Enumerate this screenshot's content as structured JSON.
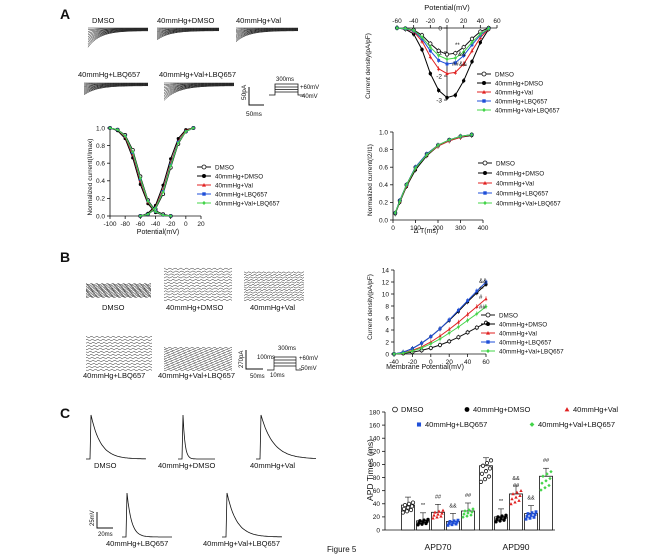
{
  "panels": {
    "A": "A",
    "B": "B",
    "C": "C"
  },
  "caption": "Figure 5",
  "groups": [
    "DMSO",
    "40mmHg+DMSO",
    "40mmHg+Val",
    "40mmHg+LBQ657",
    "40mmHg+Val+LBQ657"
  ],
  "colors": {
    "DMSO": "#ffffff",
    "40mmHg+DMSO": "#000000",
    "40mmHg+Val": "#e02020",
    "40mmHg+LBQ657": "#1f4fd8",
    "40mmHg+Val+LBQ657": "#44d44a"
  },
  "panelA": {
    "traces": {
      "labels": [
        "DMSO",
        "40mmHg+DMSO",
        "40mmHg+Val",
        "40mmHg+LBQ657",
        "40mmHg+Val+LBQ657"
      ],
      "scale_y": "50pA",
      "scale_x": "50ms",
      "protocol": {
        "dur": "300ms",
        "v_high": "+60mV",
        "v_low": "-40mV"
      }
    },
    "iv_chart": {
      "type": "line",
      "title": "Potential(mV)",
      "ylabel": "Current density(pA/pF)",
      "xlim": [
        -60,
        60
      ],
      "ylim": [
        -3,
        0
      ],
      "xticks": [
        "-60",
        "-40",
        "-20",
        "0",
        "20",
        "40",
        "60"
      ],
      "yticks": [
        "0",
        "-1",
        "-2",
        "-3"
      ],
      "x": [
        -60,
        -50,
        -40,
        -30,
        -20,
        -10,
        0,
        10,
        20,
        30,
        40,
        50
      ],
      "series": [
        {
          "name": "DMSO",
          "values": [
            0,
            -0.02,
            -0.08,
            -0.3,
            -0.65,
            -0.95,
            -1.1,
            -1.05,
            -0.8,
            -0.45,
            -0.15,
            0
          ]
        },
        {
          "name": "40mmHg+DMSO",
          "values": [
            0,
            -0.05,
            -0.25,
            -0.9,
            -1.9,
            -2.6,
            -2.9,
            -2.8,
            -2.2,
            -1.4,
            -0.6,
            -0.05
          ]
        },
        {
          "name": "40mmHg+Val",
          "values": [
            0,
            -0.03,
            -0.15,
            -0.55,
            -1.2,
            -1.7,
            -1.9,
            -1.85,
            -1.5,
            -0.95,
            -0.4,
            -0.03
          ]
        },
        {
          "name": "40mmHg+LBQ657",
          "values": [
            0,
            -0.03,
            -0.12,
            -0.45,
            -0.95,
            -1.35,
            -1.5,
            -1.45,
            -1.15,
            -0.7,
            -0.3,
            -0.02
          ]
        },
        {
          "name": "40mmHg+Val+LBQ657",
          "values": [
            0,
            -0.02,
            -0.1,
            -0.38,
            -0.8,
            -1.15,
            -1.3,
            -1.25,
            -1.0,
            -0.6,
            -0.25,
            -0.02
          ]
        }
      ],
      "annotations": [
        "**",
        "&&",
        "##",
        "&&"
      ]
    },
    "ss_chart": {
      "type": "line",
      "xlabel": "Potential(mV)",
      "ylabel": "Normalized current(I/Imax)",
      "xlim": [
        -100,
        20
      ],
      "ylim": [
        0,
        1.0
      ],
      "xticks": [
        "-100",
        "-80",
        "-60",
        "-40",
        "-20",
        "0",
        "20"
      ],
      "yticks": [
        "0.0",
        "0.2",
        "0.4",
        "0.6",
        "0.8",
        "1.0"
      ],
      "act_x": [
        -60,
        -50,
        -40,
        -30,
        -20,
        -10,
        0,
        10
      ],
      "inact_x": [
        -100,
        -90,
        -80,
        -70,
        -60,
        -50,
        -40,
        -30,
        -20
      ],
      "series": [
        {
          "name": "DMSO",
          "act": [
            0.0,
            0.02,
            0.08,
            0.25,
            0.55,
            0.82,
            0.96,
            1.0
          ],
          "inact": [
            1.0,
            0.98,
            0.92,
            0.75,
            0.45,
            0.18,
            0.06,
            0.02,
            0.0
          ]
        },
        {
          "name": "40mmHg+DMSO",
          "act": [
            0.0,
            0.03,
            0.12,
            0.35,
            0.65,
            0.88,
            0.98,
            1.0
          ],
          "inact": [
            1.0,
            0.97,
            0.88,
            0.66,
            0.36,
            0.14,
            0.04,
            0.01,
            0.0
          ]
        },
        {
          "name": "40mmHg+Val",
          "act": [
            0.0,
            0.02,
            0.1,
            0.3,
            0.6,
            0.85,
            0.97,
            1.0
          ],
          "inact": [
            1.0,
            0.98,
            0.9,
            0.7,
            0.4,
            0.16,
            0.05,
            0.01,
            0.0
          ]
        },
        {
          "name": "40mmHg+LBQ657",
          "act": [
            0.0,
            0.02,
            0.09,
            0.28,
            0.58,
            0.84,
            0.96,
            1.0
          ],
          "inact": [
            1.0,
            0.98,
            0.91,
            0.72,
            0.42,
            0.17,
            0.05,
            0.01,
            0.0
          ]
        },
        {
          "name": "40mmHg+Val+LBQ657",
          "act": [
            0.0,
            0.02,
            0.09,
            0.27,
            0.57,
            0.83,
            0.96,
            1.0
          ],
          "inact": [
            1.0,
            0.98,
            0.91,
            0.73,
            0.43,
            0.17,
            0.05,
            0.01,
            0.0
          ]
        }
      ]
    },
    "recovery_chart": {
      "type": "line",
      "xlabel": "Δ T(ms)",
      "ylabel": "Normalized current(I2/I1)",
      "xlim": [
        0,
        400
      ],
      "ylim": [
        0,
        1.0
      ],
      "xticks": [
        "0",
        "100",
        "200",
        "300",
        "400"
      ],
      "yticks": [
        "0.0",
        "0.2",
        "0.4",
        "0.6",
        "0.8",
        "1.0"
      ],
      "x": [
        10,
        30,
        60,
        100,
        150,
        200,
        250,
        300,
        350
      ],
      "series": [
        {
          "name": "DMSO",
          "values": [
            0.08,
            0.22,
            0.4,
            0.6,
            0.75,
            0.85,
            0.91,
            0.95,
            0.97
          ]
        },
        {
          "name": "40mmHg+DMSO",
          "values": [
            0.07,
            0.2,
            0.38,
            0.57,
            0.73,
            0.84,
            0.9,
            0.94,
            0.96
          ]
        },
        {
          "name": "40mmHg+Val",
          "values": [
            0.08,
            0.21,
            0.39,
            0.59,
            0.74,
            0.84,
            0.9,
            0.94,
            0.97
          ]
        },
        {
          "name": "40mmHg+LBQ657",
          "values": [
            0.08,
            0.22,
            0.4,
            0.6,
            0.75,
            0.85,
            0.91,
            0.95,
            0.97
          ]
        },
        {
          "name": "40mmHg+Val+LBQ657",
          "values": [
            0.08,
            0.21,
            0.4,
            0.59,
            0.74,
            0.85,
            0.91,
            0.95,
            0.97
          ]
        }
      ]
    }
  },
  "panelB": {
    "traces": {
      "labels": [
        "DMSO",
        "40mmHg+DMSO",
        "40mmHg+Val",
        "40mmHg+LBQ657",
        "40mmHg+Val+LBQ657"
      ],
      "scale_y": "270pA",
      "scale_x": "50ms",
      "protocol": {
        "dur": "300ms",
        "dur_short": "100ms",
        "dur_step": "10ms",
        "v_high": "+60mV",
        "v_low": "-50mV"
      }
    },
    "iv_chart": {
      "type": "line",
      "xlabel": "Membrane Potential(mV)",
      "ylabel": "Current density(pA/pF)",
      "xlim": [
        -40,
        60
      ],
      "ylim": [
        0,
        14
      ],
      "xticks": [
        "-40",
        "-20",
        "0",
        "20",
        "40",
        "60"
      ],
      "yticks": [
        "0",
        "2",
        "4",
        "6",
        "8",
        "10",
        "12",
        "14"
      ],
      "x": [
        -40,
        -30,
        -20,
        -10,
        0,
        10,
        20,
        30,
        40,
        50,
        60
      ],
      "series": [
        {
          "name": "DMSO",
          "values": [
            0,
            0.1,
            0.3,
            0.6,
            1.0,
            1.5,
            2.1,
            2.8,
            3.6,
            4.4,
            5.2
          ]
        },
        {
          "name": "40mmHg+DMSO",
          "values": [
            0,
            0.3,
            0.9,
            1.8,
            2.9,
            4.2,
            5.6,
            7.1,
            8.7,
            10.2,
            11.6
          ]
        },
        {
          "name": "40mmHg+Val",
          "values": [
            0,
            0.2,
            0.6,
            1.2,
            2.0,
            3.0,
            4.1,
            5.3,
            6.6,
            7.9,
            9.2
          ]
        },
        {
          "name": "40mmHg+LBQ657",
          "values": [
            0,
            0.3,
            0.9,
            1.8,
            2.9,
            4.2,
            5.7,
            7.3,
            8.9,
            10.5,
            12.0
          ]
        },
        {
          "name": "40mmHg+Val+LBQ657",
          "values": [
            0,
            0.15,
            0.5,
            1.0,
            1.7,
            2.5,
            3.5,
            4.5,
            5.6,
            6.7,
            7.9
          ]
        }
      ],
      "annotations": [
        "&&",
        "**",
        "#",
        "##"
      ]
    }
  },
  "panelC": {
    "traces": {
      "labels": [
        "DMSO",
        "40mmHg+DMSO",
        "40mmHg+Val",
        "40mmHg+LBQ657",
        "40mmHg+Val+LBQ657"
      ],
      "scale_y": "25mV",
      "scale_x": "20ms"
    },
    "apd_chart": {
      "type": "bar",
      "ylabel": "APD Times (ms)",
      "categories": [
        "APD70",
        "APD90"
      ],
      "ylim": [
        0,
        180
      ],
      "yticks": [
        "0",
        "20",
        "40",
        "60",
        "80",
        "100",
        "120",
        "140",
        "160",
        "180"
      ],
      "series": [
        {
          "name": "DMSO",
          "values": [
            38,
            98
          ]
        },
        {
          "name": "40mmHg+DMSO",
          "values": [
            14,
            20
          ]
        },
        {
          "name": "40mmHg+Val",
          "values": [
            27,
            55
          ]
        },
        {
          "name": "40mmHg+LBQ657",
          "values": [
            13,
            25
          ]
        },
        {
          "name": "40mmHg+Val+LBQ657",
          "values": [
            29,
            82
          ]
        }
      ],
      "annotations": {
        "APD70": [
          "",
          "**",
          "##",
          "&&",
          "##"
        ],
        "APD90": [
          "",
          "**",
          "&&\n##",
          "&&",
          "##"
        ]
      }
    }
  }
}
